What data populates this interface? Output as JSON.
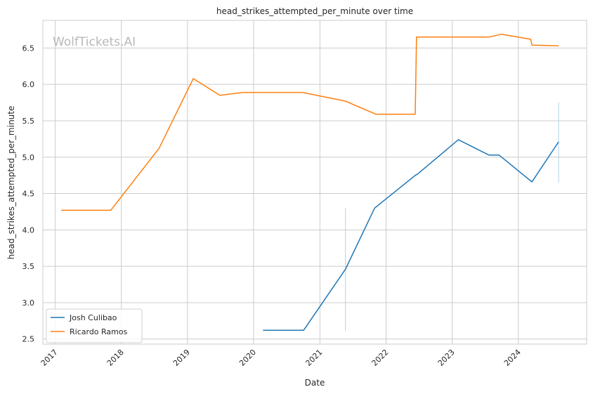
{
  "watermark": "WolfTickets.AI",
  "chart_data": {
    "type": "line",
    "title": "head_strikes_attempted_per_minute over time",
    "xlabel": "Date",
    "ylabel": "head_strikes_attempted_per_minute",
    "xlim": [
      "2016-10-25",
      "2025-01-12"
    ],
    "ylim": [
      2.43,
      6.88
    ],
    "x_ticks": [
      {
        "date": "2017-01-01",
        "label": "2017"
      },
      {
        "date": "2018-01-01",
        "label": "2018"
      },
      {
        "date": "2019-01-01",
        "label": "2019"
      },
      {
        "date": "2020-01-01",
        "label": "2020"
      },
      {
        "date": "2021-01-01",
        "label": "2021"
      },
      {
        "date": "2022-01-01",
        "label": "2022"
      },
      {
        "date": "2023-01-01",
        "label": "2023"
      },
      {
        "date": "2024-01-01",
        "label": "2024"
      }
    ],
    "y_ticks": [
      {
        "value": 2.5,
        "label": "2.5"
      },
      {
        "value": 3.0,
        "label": "3.0"
      },
      {
        "value": 3.5,
        "label": "3.5"
      },
      {
        "value": 4.0,
        "label": "4.0"
      },
      {
        "value": 4.5,
        "label": "4.5"
      },
      {
        "value": 5.0,
        "label": "5.0"
      },
      {
        "value": 5.5,
        "label": "5.5"
      },
      {
        "value": 6.0,
        "label": "6.0"
      },
      {
        "value": 6.5,
        "label": "6.5"
      }
    ],
    "grid": true,
    "legend_position": "bottom-left",
    "series": [
      {
        "name": "Josh Culibao",
        "color": "#1f77b4",
        "points": [
          {
            "x": "2020-02-22",
            "y": 2.62
          },
          {
            "x": "2020-10-03",
            "y": 2.62
          },
          {
            "x": "2021-05-22",
            "y": 3.46
          },
          {
            "x": "2021-10-30",
            "y": 4.3
          },
          {
            "x": "2022-06-11",
            "y": 4.75
          },
          {
            "x": "2022-06-25",
            "y": 4.77
          },
          {
            "x": "2023-02-04",
            "y": 5.24
          },
          {
            "x": "2023-07-22",
            "y": 5.03
          },
          {
            "x": "2023-09-16",
            "y": 5.03
          },
          {
            "x": "2024-03-16",
            "y": 4.66
          },
          {
            "x": "2024-08-10",
            "y": 5.21
          }
        ],
        "error_bars": [
          {
            "x": "2021-05-22",
            "low": 2.61,
            "high": 4.3
          },
          {
            "x": "2024-08-10",
            "low": 4.65,
            "high": 5.75
          }
        ]
      },
      {
        "name": "Ricardo Ramos",
        "color": "#ff7f0e",
        "points": [
          {
            "x": "2017-02-04",
            "y": 4.27
          },
          {
            "x": "2017-11-04",
            "y": 4.27
          },
          {
            "x": "2018-07-28",
            "y": 5.12
          },
          {
            "x": "2019-02-02",
            "y": 6.08
          },
          {
            "x": "2019-06-29",
            "y": 5.85
          },
          {
            "x": "2019-11-02",
            "y": 5.89
          },
          {
            "x": "2020-09-27",
            "y": 5.89
          },
          {
            "x": "2021-05-22",
            "y": 5.77
          },
          {
            "x": "2021-11-06",
            "y": 5.59
          },
          {
            "x": "2022-06-11",
            "y": 5.59
          },
          {
            "x": "2022-06-18",
            "y": 6.65
          },
          {
            "x": "2023-07-22",
            "y": 6.65
          },
          {
            "x": "2023-09-30",
            "y": 6.69
          },
          {
            "x": "2024-03-09",
            "y": 6.62
          },
          {
            "x": "2024-03-16",
            "y": 6.54
          },
          {
            "x": "2024-08-10",
            "y": 6.53
          }
        ]
      }
    ]
  }
}
